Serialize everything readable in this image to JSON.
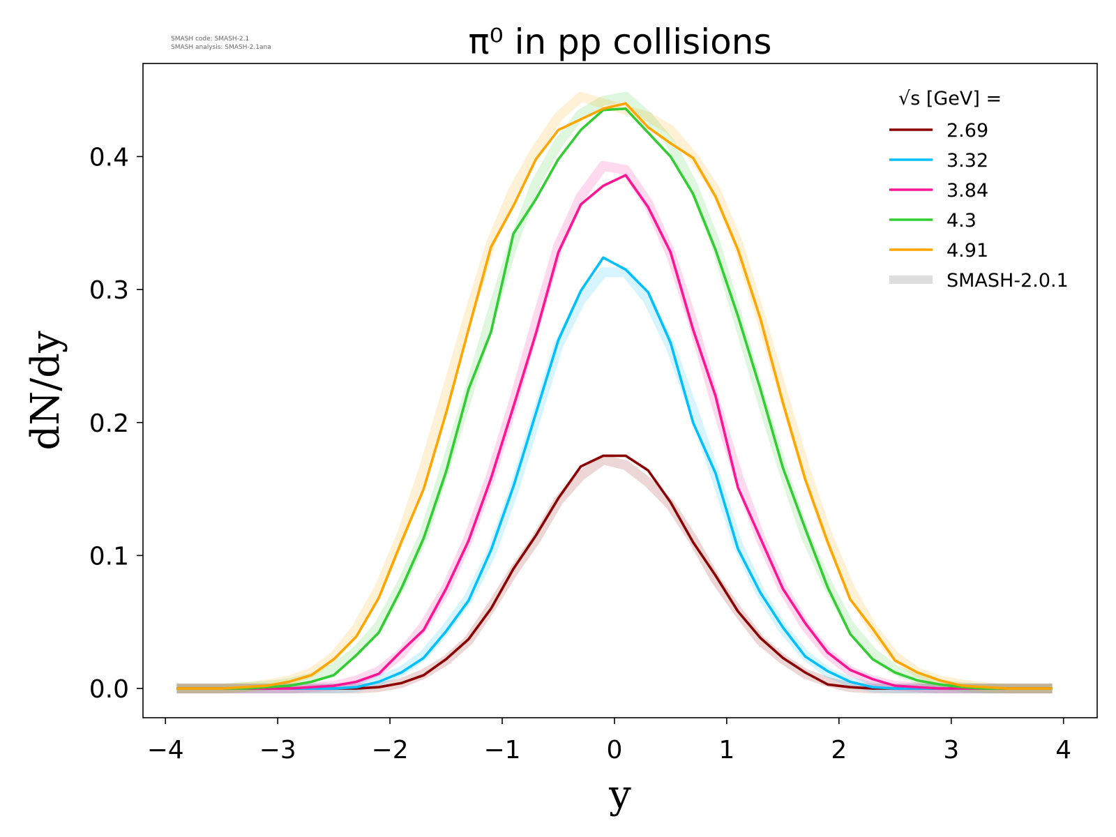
{
  "version_info": [
    "SMASH code:      SMASH-2.1",
    "SMASH analysis: SMASH-2.1ana"
  ],
  "chart_data": {
    "type": "line",
    "title": "π⁰ in pp collisions",
    "xlabel": "y",
    "ylabel": "dN/dy",
    "xlim": [
      -4.2,
      4.3
    ],
    "ylim": [
      -0.022,
      0.47
    ],
    "xticks": [
      -4,
      -3,
      -2,
      -1,
      0,
      1,
      2,
      3,
      4
    ],
    "xtick_labels": [
      "−4",
      "−3",
      "−2",
      "−1",
      "0",
      "1",
      "2",
      "3",
      "4"
    ],
    "yticks": [
      0.0,
      0.1,
      0.2,
      0.3,
      0.4
    ],
    "ytick_labels": [
      "0.0",
      "0.1",
      "0.2",
      "0.3",
      "0.4"
    ],
    "grid": false,
    "legend_title": "√s  [GeV] =",
    "legend_placement": "top-right",
    "x": [
      -3.9,
      -3.7,
      -3.5,
      -3.3,
      -3.1,
      -2.9,
      -2.7,
      -2.5,
      -2.3,
      -2.1,
      -1.9,
      -1.7,
      -1.5,
      -1.3,
      -1.1,
      -0.9,
      -0.7,
      -0.5,
      -0.3,
      -0.1,
      0.1,
      0.3,
      0.5,
      0.7,
      0.9,
      1.1,
      1.3,
      1.5,
      1.7,
      1.9,
      2.1,
      2.3,
      2.5,
      2.7,
      2.9,
      3.1,
      3.3,
      3.5,
      3.7,
      3.9
    ],
    "series": [
      {
        "name": "2.69",
        "color": "#8b0000",
        "values": [
          0,
          0,
          0,
          0,
          0,
          0,
          0,
          0,
          0,
          0.001,
          0.004,
          0.01,
          0.022,
          0.037,
          0.06,
          0.09,
          0.115,
          0.143,
          0.167,
          0.175,
          0.175,
          0.164,
          0.14,
          0.11,
          0.085,
          0.058,
          0.038,
          0.023,
          0.012,
          0.003,
          0.001,
          0,
          0,
          0,
          0,
          0,
          0,
          0,
          0,
          0
        ]
      },
      {
        "name": "3.32",
        "color": "#00bfff",
        "values": [
          0,
          0,
          0,
          0,
          0,
          0,
          0,
          0,
          0.001,
          0.005,
          0.012,
          0.023,
          0.043,
          0.066,
          0.104,
          0.152,
          0.207,
          0.262,
          0.299,
          0.324,
          0.315,
          0.298,
          0.26,
          0.2,
          0.162,
          0.105,
          0.072,
          0.046,
          0.024,
          0.013,
          0.005,
          0.001,
          0,
          0,
          0,
          0,
          0,
          0,
          0,
          0
        ]
      },
      {
        "name": "3.84",
        "color": "#ff1493",
        "values": [
          0,
          0,
          0,
          0,
          0,
          0,
          0.001,
          0.002,
          0.005,
          0.011,
          0.028,
          0.044,
          0.075,
          0.111,
          0.158,
          0.212,
          0.267,
          0.328,
          0.364,
          0.378,
          0.386,
          0.362,
          0.328,
          0.27,
          0.22,
          0.151,
          0.113,
          0.075,
          0.049,
          0.027,
          0.014,
          0.007,
          0.002,
          0.001,
          0,
          0,
          0,
          0,
          0,
          0
        ]
      },
      {
        "name": "4.3",
        "color": "#32cd32",
        "values": [
          0,
          0,
          0,
          0,
          0.001,
          0.002,
          0.005,
          0.01,
          0.025,
          0.042,
          0.075,
          0.113,
          0.163,
          0.225,
          0.268,
          0.342,
          0.368,
          0.398,
          0.42,
          0.435,
          0.436,
          0.418,
          0.4,
          0.372,
          0.33,
          0.28,
          0.225,
          0.166,
          0.12,
          0.076,
          0.041,
          0.022,
          0.012,
          0.006,
          0.003,
          0.001,
          0,
          0,
          0,
          0
        ]
      },
      {
        "name": "4.91",
        "color": "#ffa500",
        "values": [
          0,
          0,
          0,
          0.001,
          0.002,
          0.005,
          0.01,
          0.022,
          0.039,
          0.068,
          0.11,
          0.15,
          0.207,
          0.27,
          0.332,
          0.363,
          0.398,
          0.42,
          0.428,
          0.436,
          0.44,
          0.422,
          0.41,
          0.399,
          0.37,
          0.33,
          0.278,
          0.215,
          0.157,
          0.11,
          0.067,
          0.045,
          0.021,
          0.012,
          0.006,
          0.002,
          0.001,
          0,
          0,
          0
        ]
      }
    ],
    "reference": {
      "name": "SMASH-2.0.1",
      "legend_color": "#dddddd",
      "series": [
        {
          "of": "2.69",
          "values": [
            0,
            0,
            0,
            0,
            0,
            0,
            0,
            0,
            0,
            0.001,
            0.004,
            0.011,
            0.021,
            0.036,
            0.061,
            0.088,
            0.112,
            0.141,
            0.16,
            0.172,
            0.168,
            0.155,
            0.138,
            0.112,
            0.082,
            0.058,
            0.036,
            0.022,
            0.011,
            0.005,
            0.001,
            0,
            0,
            0,
            0,
            0,
            0,
            0,
            0,
            0
          ]
        },
        {
          "of": "3.32",
          "values": [
            0,
            0,
            0,
            0,
            0,
            0,
            0,
            0,
            0.001,
            0.006,
            0.013,
            0.025,
            0.045,
            0.068,
            0.101,
            0.148,
            0.203,
            0.258,
            0.292,
            0.313,
            0.313,
            0.292,
            0.257,
            0.21,
            0.16,
            0.108,
            0.072,
            0.045,
            0.025,
            0.012,
            0.005,
            0.001,
            0,
            0,
            0,
            0,
            0,
            0,
            0,
            0
          ]
        },
        {
          "of": "3.84",
          "values": [
            0,
            0,
            0,
            0,
            0,
            0,
            0.001,
            0.002,
            0.006,
            0.013,
            0.026,
            0.047,
            0.075,
            0.113,
            0.16,
            0.215,
            0.275,
            0.333,
            0.37,
            0.393,
            0.39,
            0.365,
            0.327,
            0.275,
            0.215,
            0.16,
            0.113,
            0.075,
            0.047,
            0.026,
            0.013,
            0.006,
            0.002,
            0.001,
            0,
            0,
            0,
            0,
            0,
            0
          ]
        },
        {
          "of": "4.3",
          "values": [
            0,
            0,
            0,
            0.001,
            0.002,
            0.004,
            0.008,
            0.015,
            0.028,
            0.047,
            0.078,
            0.115,
            0.168,
            0.222,
            0.28,
            0.335,
            0.38,
            0.41,
            0.432,
            0.442,
            0.445,
            0.43,
            0.41,
            0.378,
            0.335,
            0.278,
            0.22,
            0.165,
            0.115,
            0.078,
            0.047,
            0.027,
            0.014,
            0.007,
            0.003,
            0.001,
            0,
            0,
            0,
            0
          ]
        },
        {
          "of": "4.91",
          "values": [
            0,
            0,
            0,
            0.001,
            0.003,
            0.006,
            0.012,
            0.024,
            0.045,
            0.075,
            0.115,
            0.165,
            0.222,
            0.28,
            0.335,
            0.375,
            0.405,
            0.43,
            0.445,
            0.44,
            0.435,
            0.43,
            0.42,
            0.4,
            0.375,
            0.335,
            0.28,
            0.222,
            0.165,
            0.115,
            0.075,
            0.045,
            0.024,
            0.012,
            0.006,
            0.003,
            0.001,
            0,
            0,
            0
          ]
        }
      ]
    }
  }
}
